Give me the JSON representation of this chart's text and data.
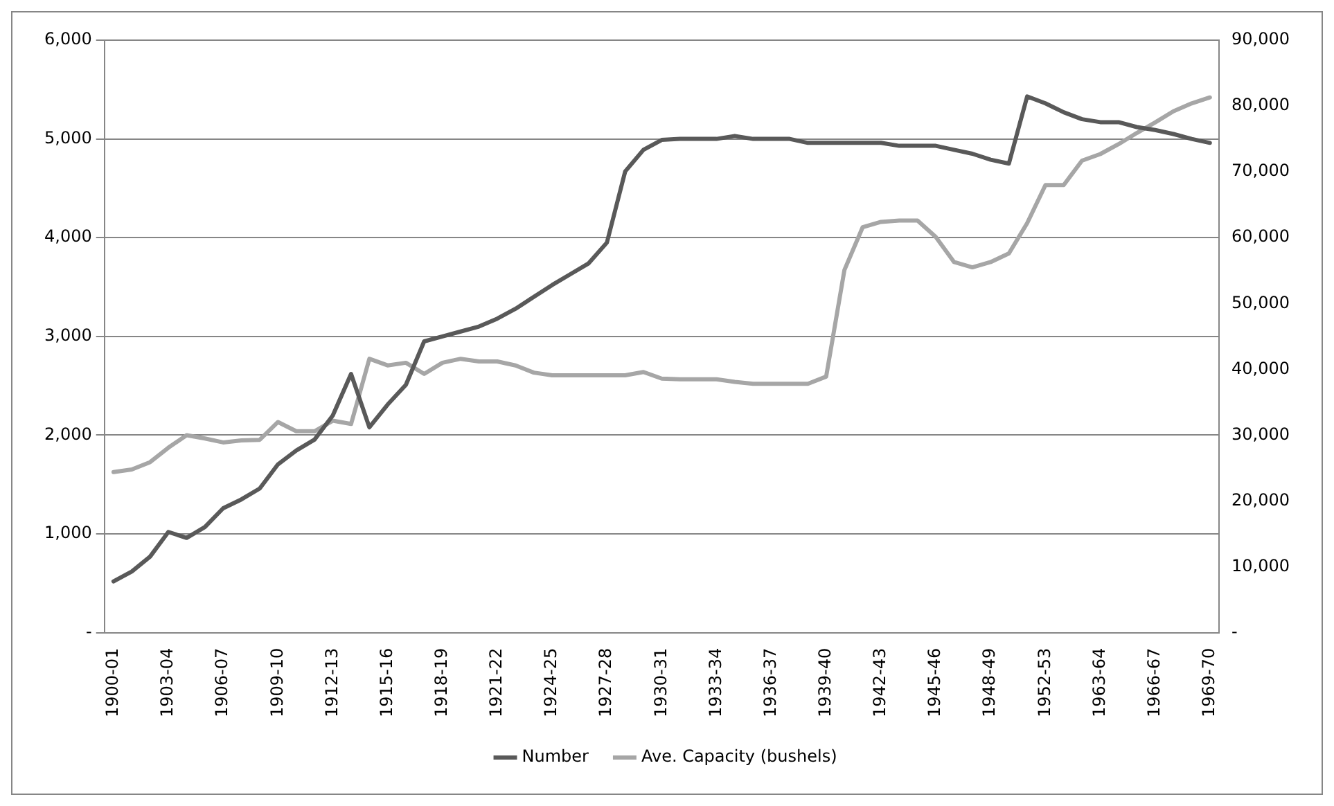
{
  "chart_data": {
    "type": "line",
    "categories": [
      "1900-01",
      null,
      null,
      "1903-04",
      null,
      null,
      "1906-07",
      null,
      null,
      "1909-10",
      null,
      null,
      "1912-13",
      null,
      null,
      "1915-16",
      null,
      null,
      "1918-19",
      null,
      null,
      "1921-22",
      null,
      null,
      "1924-25",
      null,
      null,
      "1927-28",
      null,
      null,
      "1930-31",
      null,
      null,
      "1933-34",
      null,
      null,
      "1936-37",
      null,
      null,
      "1939-40",
      null,
      null,
      "1942-43",
      null,
      null,
      "1945-46",
      null,
      null,
      "1948-49",
      null,
      null,
      "1952-53",
      null,
      null,
      "1963-64",
      null,
      null,
      "1966-67",
      null,
      null,
      "1969-70"
    ],
    "series": [
      {
        "name": "Number",
        "color": "#595959",
        "values": [
          520,
          620,
          770,
          1020,
          960,
          1070,
          1260,
          1350,
          1460,
          1705,
          1845,
          1955,
          2200,
          2620,
          2080,
          2310,
          2510,
          2950,
          3000,
          3050,
          3100,
          3180,
          3280,
          3400,
          3520,
          3630,
          3740,
          3950,
          4670,
          4890,
          4990,
          5000,
          5000,
          5000,
          5030,
          5000,
          5000,
          5000,
          4960,
          4960,
          4960,
          4960,
          4960,
          4930,
          4930,
          4930,
          4890,
          4850,
          4790,
          4750,
          5430,
          5360,
          5270,
          5200,
          5170,
          5170,
          5120,
          5090,
          5050,
          5000,
          4960
        ]
      },
      {
        "name": "Ave. Capacity (bushels)",
        "color": "#a6a6a6",
        "axis": "y2",
        "values": [
          24400,
          24800,
          25900,
          28100,
          30000,
          29500,
          28900,
          29200,
          29300,
          32000,
          30600,
          30600,
          32200,
          31700,
          41600,
          40600,
          41000,
          39300,
          41000,
          41600,
          41200,
          41200,
          40600,
          39500,
          39100,
          39100,
          39100,
          39100,
          39100,
          39600,
          38600,
          38500,
          38500,
          38500,
          38100,
          37800,
          37800,
          37800,
          37800,
          38900,
          55100,
          61600,
          62400,
          62600,
          62600,
          60100,
          56300,
          55500,
          56300,
          57600,
          62200,
          68000,
          68000,
          71700,
          72700,
          74200,
          75900,
          77500,
          79200,
          80400,
          81300
        ]
      }
    ],
    "ylim": [
      0,
      6000
    ],
    "yticks": [
      {
        "value": 0,
        "label": "-"
      },
      {
        "value": 1000,
        "label": "1,000"
      },
      {
        "value": 2000,
        "label": "2,000"
      },
      {
        "value": 3000,
        "label": "3,000"
      },
      {
        "value": 4000,
        "label": "4,000"
      },
      {
        "value": 5000,
        "label": "5,000"
      },
      {
        "value": 6000,
        "label": "6,000"
      }
    ],
    "y2lim": [
      0,
      90000
    ],
    "y2ticks": [
      {
        "value": 0,
        "label": "-"
      },
      {
        "value": 10000,
        "label": "10,000"
      },
      {
        "value": 20000,
        "label": "20,000"
      },
      {
        "value": 30000,
        "label": "30,000"
      },
      {
        "value": 40000,
        "label": "40,000"
      },
      {
        "value": 50000,
        "label": "50,000"
      },
      {
        "value": 60000,
        "label": "60,000"
      },
      {
        "value": 70000,
        "label": "70,000"
      },
      {
        "value": 80000,
        "label": "80,000"
      },
      {
        "value": 90000,
        "label": "90,000"
      }
    ],
    "grid": "y",
    "legend": "bottom",
    "marker": "none",
    "line_style": "solid"
  }
}
